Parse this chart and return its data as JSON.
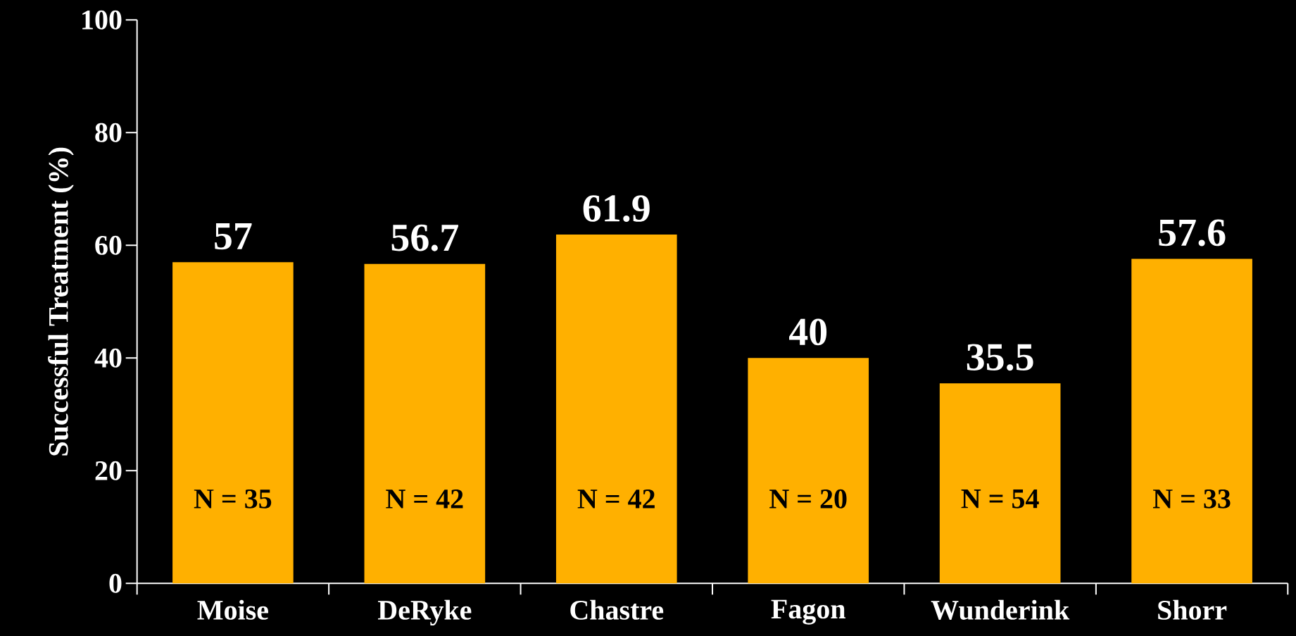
{
  "chart_data": {
    "type": "bar",
    "ylabel": "Successful Treatment (%)",
    "categories": [
      "Moise",
      "DeRyke",
      "Chastre",
      "Fagon",
      "Wunderink",
      "Shorr"
    ],
    "values": [
      57,
      56.7,
      61.9,
      40,
      35.5,
      57.6
    ],
    "color": "#ffb000",
    "ylim": [
      0,
      100
    ],
    "yticks": [
      0,
      20,
      40,
      60,
      80,
      100
    ],
    "data_labels": true,
    "annotations": [
      "N = 35",
      "N = 42",
      "N = 42",
      "N = 20",
      "N = 54",
      "N = 33"
    ]
  }
}
